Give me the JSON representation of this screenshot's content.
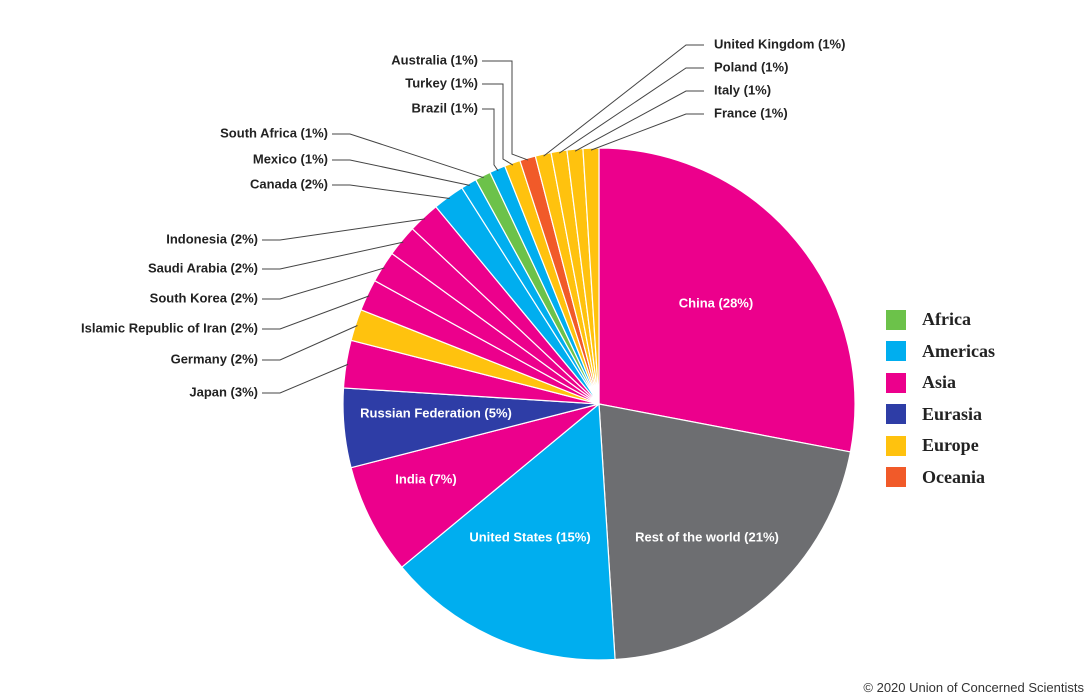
{
  "chart_data": {
    "type": "pie",
    "start_angle_deg": 0,
    "direction": "clockwise",
    "slices": [
      {
        "label": "China (28%)",
        "value": 28,
        "region": "Asia"
      },
      {
        "label": "Rest of the world (21%)",
        "value": 21,
        "region": "Rest of the world"
      },
      {
        "label": "United States (15%)",
        "value": 15,
        "region": "Americas"
      },
      {
        "label": "India (7%)",
        "value": 7,
        "region": "Asia"
      },
      {
        "label": "Russian Federation (5%)",
        "value": 5,
        "region": "Eurasia"
      },
      {
        "label": "Japan (3%)",
        "value": 3,
        "region": "Asia"
      },
      {
        "label": "Germany (2%)",
        "value": 2,
        "region": "Europe"
      },
      {
        "label": "Islamic Republic of Iran (2%)",
        "value": 2,
        "region": "Asia"
      },
      {
        "label": "South Korea (2%)",
        "value": 2,
        "region": "Asia"
      },
      {
        "label": "Saudi Arabia (2%)",
        "value": 2,
        "region": "Asia"
      },
      {
        "label": "Indonesia (2%)",
        "value": 2,
        "region": "Asia"
      },
      {
        "label": "Canada (2%)",
        "value": 2,
        "region": "Americas"
      },
      {
        "label": "Mexico (1%)",
        "value": 1,
        "region": "Americas"
      },
      {
        "label": "South Africa (1%)",
        "value": 1,
        "region": "Africa"
      },
      {
        "label": "Brazil (1%)",
        "value": 1,
        "region": "Americas"
      },
      {
        "label": "Turkey (1%)",
        "value": 1,
        "region": "Europe"
      },
      {
        "label": "Australia (1%)",
        "value": 1,
        "region": "Oceania"
      },
      {
        "label": "United Kingdom (1%)",
        "value": 1,
        "region": "Europe"
      },
      {
        "label": "Poland (1%)",
        "value": 1,
        "region": "Europe"
      },
      {
        "label": "Italy (1%)",
        "value": 1,
        "region": "Europe"
      },
      {
        "label": "France (1%)",
        "value": 1,
        "region": "Europe"
      }
    ],
    "colors": {
      "Africa": "#6cc24a",
      "Americas": "#00aeef",
      "Asia": "#ec008c",
      "Eurasia": "#2e3da6",
      "Europe": "#ffc20e",
      "Oceania": "#f15a29",
      "Rest of the world": "#6d6e71"
    },
    "legend": {
      "placement": "right",
      "entries": [
        "Africa",
        "Americas",
        "Asia",
        "Eurasia",
        "Europe",
        "Oceania"
      ]
    }
  },
  "credit": "© 2020 Union of Concerned Scientists"
}
